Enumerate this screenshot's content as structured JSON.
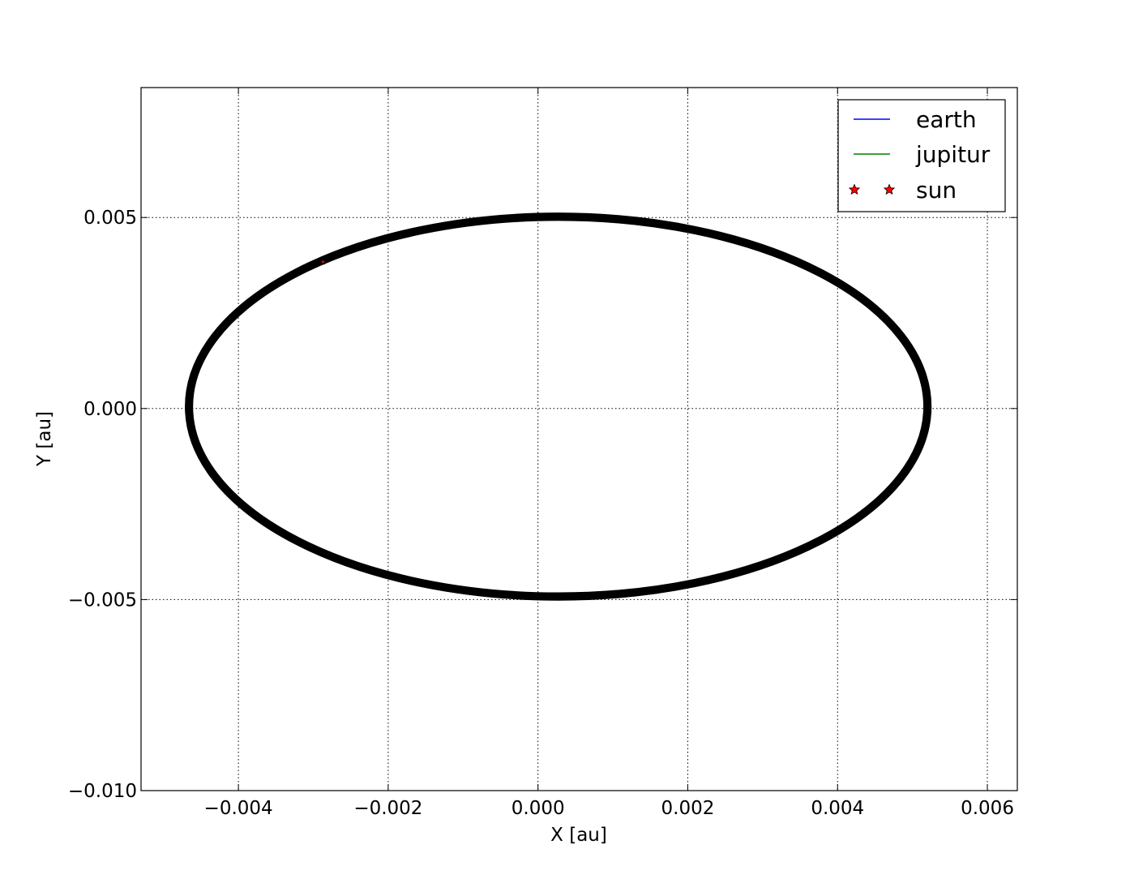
{
  "chart_data": {
    "type": "line",
    "title": "",
    "xlabel": "X [au]",
    "ylabel": "Y [au]",
    "xlim": [
      -0.0053,
      0.0064
    ],
    "ylim": [
      -0.01,
      0.0084
    ],
    "grid": true,
    "grid_style": "dotted",
    "legend_position": "top-right",
    "x_ticks": [
      -0.004,
      -0.002,
      0.0,
      0.002,
      0.004,
      0.006
    ],
    "x_tick_labels": [
      "−0.004",
      "−0.002",
      "0.000",
      "0.002",
      "0.004",
      "0.006"
    ],
    "y_ticks": [
      0.005,
      0.0,
      -0.005,
      -0.01
    ],
    "y_tick_labels": [
      "0.005",
      "0.000",
      "−0.005",
      "−0.010"
    ],
    "series": [
      {
        "name": "earth",
        "color": "#0000ff",
        "style": "line",
        "visible_in_plot": false
      },
      {
        "name": "jupitur",
        "color": "#008000",
        "style": "line",
        "visible_in_plot": false
      },
      {
        "name": "sun",
        "color": "#ff0000",
        "style": "star-marker",
        "orbit": {
          "center_x": 0.00027,
          "center_y": 5e-05,
          "semi_major_x": 0.00493,
          "semi_minor_y": 0.00497,
          "band_width": 0.00011,
          "band_color": "#000000"
        },
        "highlight_point": {
          "x": -0.00287,
          "y": 0.00384
        }
      }
    ]
  }
}
